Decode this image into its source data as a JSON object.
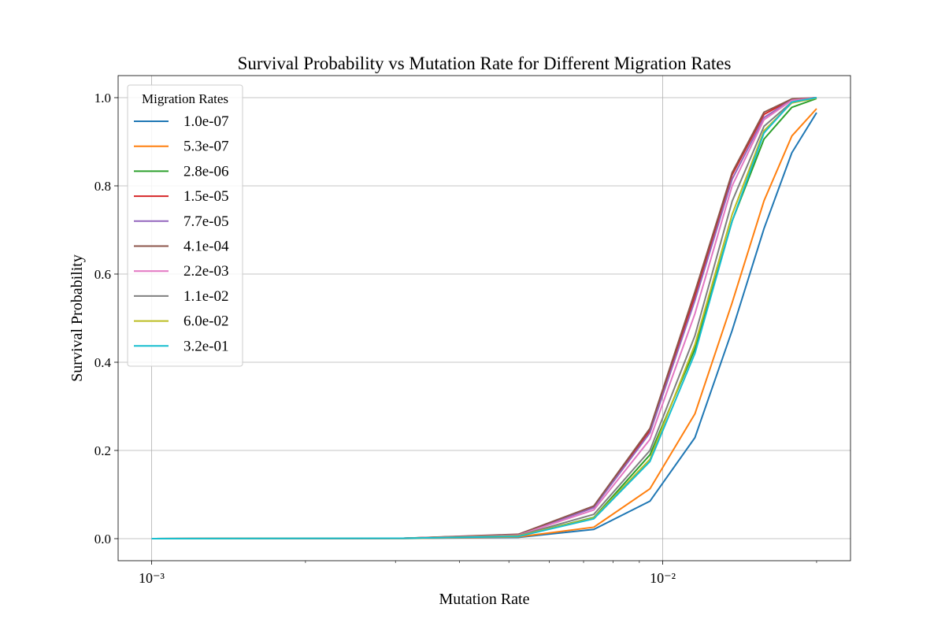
{
  "chart_data": {
    "type": "line",
    "title": "Survival Probability vs Mutation Rate for Different Migration Rates",
    "xlabel": "Mutation Rate",
    "ylabel": "Survival Probability",
    "x": [
      0.001,
      0.00311,
      0.00522,
      0.00733,
      0.00944,
      0.01156,
      0.01367,
      0.01578,
      0.01789,
      0.02
    ],
    "xscale": "log",
    "xlim": [
      0.00086,
      0.0233
    ],
    "xticks": [
      {
        "value": 0.001,
        "label": "10⁻³"
      },
      {
        "value": 0.01,
        "label": "10⁻²"
      }
    ],
    "xminor_ticks": [
      0.002,
      0.003,
      0.004,
      0.005,
      0.006,
      0.007,
      0.008,
      0.009,
      0.02
    ],
    "ylim": [
      -0.05,
      1.05
    ],
    "yticks": [
      {
        "value": 0,
        "label": "0.0"
      },
      {
        "value": 0.2,
        "label": "0.2"
      },
      {
        "value": 0.4,
        "label": "0.4"
      },
      {
        "value": 0.6,
        "label": "0.6"
      },
      {
        "value": 0.8,
        "label": "0.8"
      },
      {
        "value": 1,
        "label": "1.0"
      }
    ],
    "grid": true,
    "legend_title": "Migration Rates",
    "legend_position": "upper left",
    "series": [
      {
        "name": "1.0e-07",
        "color": "#1f77b4",
        "values": [
          0,
          0.0005,
          0.003,
          0.021,
          0.085,
          0.229,
          0.472,
          0.703,
          0.875,
          0.966
        ]
      },
      {
        "name": "5.3e-07",
        "color": "#ff7f0e",
        "values": [
          0,
          0.0005,
          0.004,
          0.026,
          0.113,
          0.283,
          0.535,
          0.766,
          0.913,
          0.975
        ]
      },
      {
        "name": "2.8e-06",
        "color": "#2ca02c",
        "values": [
          0,
          0.001,
          0.006,
          0.048,
          0.19,
          0.43,
          0.72,
          0.906,
          0.978,
          0.998
        ]
      },
      {
        "name": "1.5e-05",
        "color": "#d62728",
        "values": [
          0,
          0.001,
          0.009,
          0.072,
          0.245,
          0.55,
          0.825,
          0.962,
          0.996,
          1.0
        ]
      },
      {
        "name": "7.7e-05",
        "color": "#9467bd",
        "values": [
          0,
          0.001,
          0.009,
          0.07,
          0.24,
          0.54,
          0.815,
          0.955,
          0.995,
          1.0
        ]
      },
      {
        "name": "4.1e-04",
        "color": "#8c564b",
        "values": [
          0,
          0.001,
          0.01,
          0.074,
          0.25,
          0.56,
          0.83,
          0.967,
          0.997,
          1.0
        ]
      },
      {
        "name": "2.2e-03",
        "color": "#e377c2",
        "values": [
          0,
          0.001,
          0.008,
          0.065,
          0.225,
          0.51,
          0.8,
          0.95,
          0.994,
          1.0
        ]
      },
      {
        "name": "1.1e-02",
        "color": "#7f7f7f",
        "values": [
          0,
          0.001,
          0.007,
          0.055,
          0.2,
          0.46,
          0.765,
          0.935,
          0.99,
          1.0
        ]
      },
      {
        "name": "6.0e-02",
        "color": "#bcbd22",
        "values": [
          0,
          0.001,
          0.006,
          0.047,
          0.18,
          0.44,
          0.735,
          0.925,
          0.988,
          0.999
        ]
      },
      {
        "name": "3.2e-01",
        "color": "#17becf",
        "values": [
          0,
          0.001,
          0.005,
          0.045,
          0.175,
          0.42,
          0.72,
          0.92,
          0.99,
          1.0
        ]
      }
    ]
  }
}
